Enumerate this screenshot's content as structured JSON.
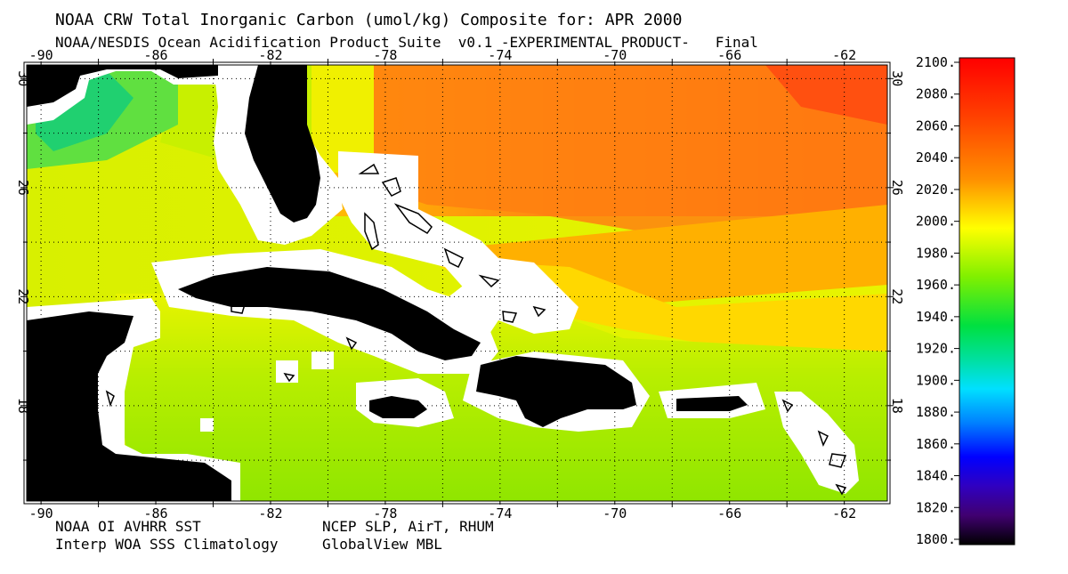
{
  "title": "NOAA CRW Total Inorganic Carbon (umol/kg) Composite for: APR 2000",
  "subtitle": "NOAA/NESDIS Ocean Acidification Product Suite  v0.1 -EXPERIMENTAL PRODUCT-   Final",
  "footer": {
    "left_1": "NOAA OI AVHRR SST",
    "left_2": "Interp WOA SSS Climatology",
    "right_1": "NCEP SLP, AirT, RHUM",
    "right_2": "GlobalView MBL"
  },
  "map": {
    "lon_ticks": [
      "-90",
      "-86",
      "-82",
      "-78",
      "-74",
      "-70",
      "-66",
      "-62"
    ],
    "lat_ticks": [
      "30",
      "26",
      "22",
      "18"
    ],
    "lon_range": [
      -90.5,
      -60.5
    ],
    "lat_range": [
      14.5,
      30.5
    ]
  },
  "colorbar": {
    "labels": [
      "2100.",
      "2080.",
      "2060.",
      "2040.",
      "2020.",
      "2000.",
      "1980.",
      "1960.",
      "1940.",
      "1920.",
      "1900.",
      "1880.",
      "1860.",
      "1840.",
      "1820.",
      "1800."
    ],
    "range": [
      1800,
      2100
    ]
  },
  "colors": {
    "land": "#000000",
    "coastal_mask": "#ffffff",
    "open_ocean_north": "#ff6010",
    "gulf": "#c8f000",
    "caribbean": "#90e800"
  }
}
